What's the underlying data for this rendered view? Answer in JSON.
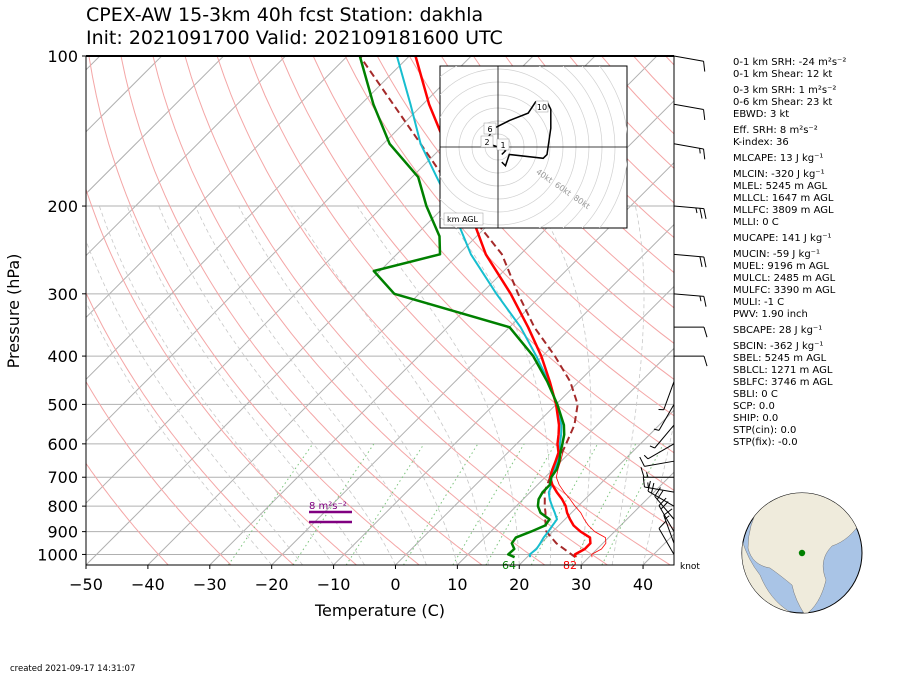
{
  "title_line1": "CPEX-AW 15-3km  40h fcst  Station: dakhla",
  "title_line2": "Init: 2021091700  Valid: 202109181600 UTC",
  "created": "created 2021-09-17 14:31:07",
  "stats": [
    {
      "text": "0-1 km SRH: -24 m²s⁻²",
      "gap": false
    },
    {
      "text": "0-1 km Shear: 12 kt",
      "gap": false
    },
    {
      "text": "0-3 km SRH: 1 m²s⁻²",
      "gap": true
    },
    {
      "text": "0-6 km Shear: 23 kt",
      "gap": false
    },
    {
      "text": "EBWD: 3 kt",
      "gap": false
    },
    {
      "text": "Eff. SRH: 8 m²s⁻²",
      "gap": true
    },
    {
      "text": "K-index: 36",
      "gap": false
    },
    {
      "text": "MLCAPE: 13 J kg⁻¹",
      "gap": true
    },
    {
      "text": "MLCIN: -320 J kg⁻¹",
      "gap": true
    },
    {
      "text": "MLEL: 5245 m AGL",
      "gap": false
    },
    {
      "text": "MLLCL: 1647 m AGL",
      "gap": false
    },
    {
      "text": "MLLFC: 3809 m AGL",
      "gap": false
    },
    {
      "text": "MLLI: 0 C",
      "gap": false
    },
    {
      "text": "MUCAPE: 141 J kg⁻¹",
      "gap": true
    },
    {
      "text": "MUCIN: -59 J kg⁻¹",
      "gap": true
    },
    {
      "text": "MUEL: 9196 m AGL",
      "gap": false
    },
    {
      "text": "MULCL: 2485 m AGL",
      "gap": false
    },
    {
      "text": "MULFC: 3390 m AGL",
      "gap": false
    },
    {
      "text": "MULI: -1 C",
      "gap": false
    },
    {
      "text": "PWV: 1.90 inch",
      "gap": false
    },
    {
      "text": "SBCAPE: 28 J kg⁻¹",
      "gap": true
    },
    {
      "text": "SBCIN: -362 J kg⁻¹",
      "gap": true
    },
    {
      "text": "SBEL: 5245 m AGL",
      "gap": false
    },
    {
      "text": "SBLCL: 1271 m AGL",
      "gap": false
    },
    {
      "text": "SBLFC: 3746 m AGL",
      "gap": false
    },
    {
      "text": "SBLI: 0 C",
      "gap": false
    },
    {
      "text": "SCP: 0.0",
      "gap": false
    },
    {
      "text": "SHIP: 0.0",
      "gap": false
    },
    {
      "text": "STP(cin): 0.0",
      "gap": false
    },
    {
      "text": "STP(fix): -0.0",
      "gap": false
    }
  ],
  "chart_data": {
    "type": "skewt",
    "xlabel": "Temperature (C)",
    "ylabel": "Pressure (hPa)",
    "xlim": [
      -50,
      45
    ],
    "ylim": [
      1050,
      100
    ],
    "y_scale": "log",
    "xticks": [
      -50,
      -40,
      -30,
      -20,
      -10,
      0,
      10,
      20,
      30,
      40
    ],
    "yticks": [
      100,
      200,
      300,
      400,
      500,
      600,
      700,
      800,
      900,
      1000
    ],
    "colors": {
      "temperature": "#ff0000",
      "dewpoint": "#008000",
      "virtual_temperature": "#ff0000",
      "wetbulb": "#17becf",
      "parcel": "#a52a2a",
      "srh_bar": "#800080",
      "surface_temp_label": "#ff0000",
      "surface_dew_label": "#008000"
    },
    "series": [
      {
        "key": "temperature",
        "pressure": [
          1013,
          1000,
          975,
          950,
          925,
          900,
          875,
          850,
          825,
          800,
          775,
          750,
          725,
          700,
          675,
          650,
          625,
          600,
          575,
          550,
          500,
          450,
          400,
          350,
          300,
          250,
          200,
          175,
          150,
          125,
          100
        ],
        "values": [
          27.8,
          27.3,
          28.0,
          28.0,
          27.0,
          24.5,
          22.4,
          20.8,
          19.3,
          18.0,
          16.3,
          14.3,
          12.4,
          10.8,
          9.9,
          9.1,
          8.2,
          6.6,
          5.3,
          3.8,
          0.0,
          -4.7,
          -10.2,
          -17.0,
          -25.2,
          -35.6,
          -46.3,
          -52.6,
          -60.0,
          -69.0,
          -79.0
        ]
      },
      {
        "key": "dewpoint",
        "pressure": [
          1013,
          1000,
          975,
          950,
          925,
          900,
          875,
          850,
          825,
          800,
          775,
          750,
          725,
          700,
          675,
          650,
          625,
          600,
          575,
          550,
          500,
          450,
          400,
          350,
          300,
          270,
          250,
          230,
          200,
          175,
          150,
          125,
          100
        ],
        "values": [
          18.0,
          16.5,
          16.6,
          15.3,
          15.0,
          16.5,
          17.8,
          17.5,
          15.0,
          13.5,
          12.5,
          12.0,
          12.0,
          11.0,
          10.6,
          9.7,
          8.5,
          7.4,
          6.2,
          4.6,
          0.2,
          -5.1,
          -11.5,
          -20.0,
          -44.0,
          -51.0,
          -43.0,
          -46.0,
          -53.0,
          -59.0,
          -69.0,
          -78.0,
          -88.0
        ]
      },
      {
        "key": "virtual_temperature",
        "pressure": [
          1013,
          1000,
          975,
          950,
          925,
          900,
          875,
          850,
          825,
          800,
          775,
          750,
          725,
          700,
          675,
          650,
          625,
          600
        ],
        "values": [
          30.5,
          30.0,
          30.7,
          30.5,
          29.5,
          26.8,
          24.8,
          23.1,
          21.5,
          19.5,
          17.6,
          15.5,
          13.5,
          11.8,
          10.8,
          9.9,
          8.9,
          7.2
        ]
      },
      {
        "key": "wetbulb",
        "pressure": [
          1013,
          1000,
          975,
          950,
          925,
          900,
          875,
          850,
          825,
          800,
          775,
          750,
          725,
          700,
          675,
          650,
          625,
          600,
          575,
          550,
          500,
          450,
          400,
          350,
          300,
          250,
          200,
          175,
          150,
          125,
          100
        ],
        "values": [
          20.5,
          20.0,
          20.2,
          19.9,
          19.5,
          19.3,
          19.0,
          18.7,
          17.3,
          15.8,
          14.3,
          13.0,
          12.3,
          11.0,
          10.3,
          9.4,
          8.4,
          7.0,
          5.7,
          4.2,
          0.1,
          -4.9,
          -11.0,
          -18.2,
          -27.5,
          -38.0,
          -49.0,
          -56.0,
          -64.0,
          -72.0,
          -82.0
        ]
      },
      {
        "key": "parcel",
        "pressure": [
          1013,
          950,
          900,
          850,
          825,
          800,
          775,
          750,
          700,
          650,
          600,
          550,
          500,
          450,
          400,
          350,
          300,
          250,
          200,
          150,
          100
        ],
        "values": [
          27.8,
          22.5,
          19.0,
          16.8,
          15.8,
          14.6,
          13.5,
          12.3,
          10.8,
          9.5,
          8.0,
          6.3,
          3.5,
          -1.4,
          -8.0,
          -16.0,
          -24.0,
          -33.0,
          -47.0,
          -64.0,
          -88.0
        ]
      }
    ],
    "surface_temp_label": "82",
    "surface_dew_label": "64",
    "srh_label": "8 m²s⁻²",
    "wind_units": "knot",
    "wind_levels": [
      {
        "p": 1000,
        "spd": 10,
        "dir": 330
      },
      {
        "p": 950,
        "spd": 15,
        "dir": 340
      },
      {
        "p": 900,
        "spd": 20,
        "dir": 330
      },
      {
        "p": 850,
        "spd": 20,
        "dir": 320
      },
      {
        "p": 800,
        "spd": 20,
        "dir": 300
      },
      {
        "p": 750,
        "spd": 15,
        "dir": 280
      },
      {
        "p": 700,
        "spd": 15,
        "dir": 270
      },
      {
        "p": 650,
        "spd": 10,
        "dir": 260
      },
      {
        "p": 600,
        "spd": 5,
        "dir": 240
      },
      {
        "p": 550,
        "spd": 5,
        "dir": 220
      },
      {
        "p": 500,
        "spd": 5,
        "dir": 210
      },
      {
        "p": 450,
        "spd": 5,
        "dir": 200
      },
      {
        "p": 400,
        "spd": 10,
        "dir": 90
      },
      {
        "p": 350,
        "spd": 10,
        "dir": 90
      },
      {
        "p": 300,
        "spd": 15,
        "dir": 95
      },
      {
        "p": 250,
        "spd": 20,
        "dir": 95
      },
      {
        "p": 200,
        "spd": 25,
        "dir": 95
      },
      {
        "p": 150,
        "spd": 15,
        "dir": 100
      },
      {
        "p": 125,
        "spd": 10,
        "dir": 100
      },
      {
        "p": 100,
        "spd": 10,
        "dir": 100
      }
    ],
    "hodograph": {
      "range_labels": [
        "40kt",
        "60kt",
        "80kt"
      ],
      "height_labels": [
        "10",
        "6",
        "2",
        "1"
      ],
      "footer": "km AGL",
      "points_kt": [
        [
          1,
          -2
        ],
        [
          2,
          -1
        ],
        [
          1,
          0
        ],
        [
          0,
          0
        ],
        [
          -3,
          1
        ],
        [
          -4,
          0
        ],
        [
          -3,
          2
        ],
        [
          -1,
          5
        ],
        [
          3,
          7
        ],
        [
          8,
          9
        ],
        [
          10,
          12
        ],
        [
          13,
          12
        ],
        [
          14,
          10
        ],
        [
          14,
          5
        ],
        [
          13,
          -2
        ],
        [
          12,
          -3
        ],
        [
          3,
          -2
        ],
        [
          2,
          -5
        ],
        [
          1,
          -4
        ]
      ]
    },
    "globe_marker_color": "#008000"
  }
}
